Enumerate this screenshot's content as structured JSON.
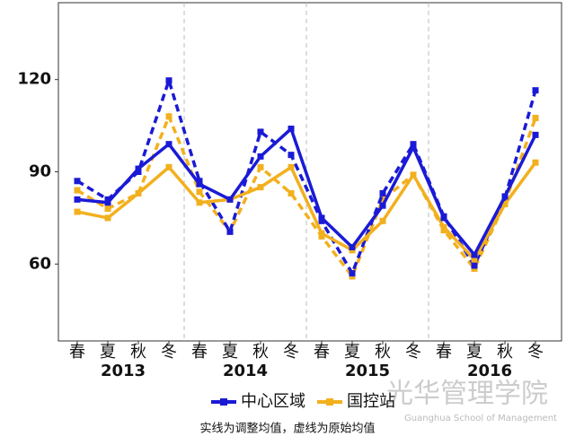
{
  "chart_data": {
    "type": "line",
    "categories": [
      "春",
      "夏",
      "秋",
      "冬",
      "春",
      "夏",
      "秋",
      "冬",
      "春",
      "夏",
      "秋",
      "冬",
      "春",
      "夏",
      "秋",
      "冬"
    ],
    "groups": [
      "2013",
      "2014",
      "2015",
      "2016"
    ],
    "series": [
      {
        "name": "中心区域",
        "color": "#1a1ad6",
        "style": "solid",
        "values": [
          81,
          80,
          91,
          99,
          86,
          81,
          95,
          104,
          75,
          65.5,
          79,
          98,
          75,
          63,
          82,
          102
        ]
      },
      {
        "name": "国控站",
        "color": "#f2b01e",
        "style": "solid",
        "values": [
          77,
          75,
          83,
          91.5,
          80,
          81,
          85,
          91.5,
          70,
          64.5,
          74,
          89,
          72,
          61.5,
          79.5,
          93
        ]
      },
      {
        "color": "#1a1ad6",
        "style": "dashed",
        "values": [
          87,
          81,
          90,
          119.7,
          87,
          70.5,
          103,
          95.5,
          74,
          57,
          83,
          99,
          75.5,
          59.5,
          81.5,
          116.5
        ]
      },
      {
        "color": "#f2b01e",
        "style": "dashed",
        "values": [
          84,
          78,
          83,
          108,
          83.5,
          70.5,
          91.5,
          83,
          69,
          56,
          81,
          89,
          71,
          58.5,
          80,
          107.5
        ]
      }
    ],
    "ylim": [
      35,
      145
    ],
    "yticks": [
      60,
      90,
      120
    ],
    "note": "实线为调整均值，虚线为原始均值",
    "watermark": {
      "title": "光华管理学院",
      "subtitle": "Guanghua School of Management"
    }
  }
}
